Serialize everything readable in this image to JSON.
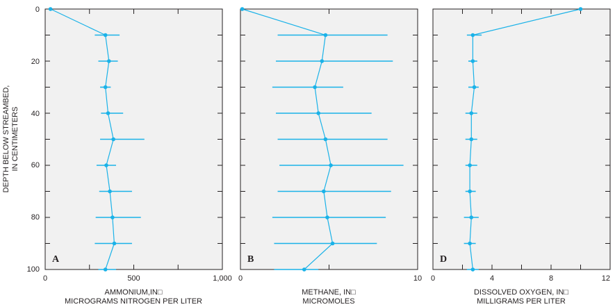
{
  "y_axis": {
    "label_lines": [
      "DEPTH BELOW STREAMBED,",
      "IN CENTIMETERS"
    ],
    "ticks": [
      "0",
      "20",
      "40",
      "60",
      "80",
      "100"
    ]
  },
  "colors": {
    "series": "#1ab2e8",
    "panel_background": "#f1f1f1",
    "axis": "#231f20"
  },
  "chart_data": [
    {
      "type": "line",
      "panel_label": "A",
      "xlabel_lines": [
        "AMMONIUM,IN□",
        "MICROGRAMS NITROGEN PER LITER"
      ],
      "xlim": [
        0,
        1000
      ],
      "ylim": [
        100,
        0
      ],
      "x_ticks": [
        "0",
        "500",
        "1,000"
      ],
      "x_minor_ticks": [
        250,
        750
      ],
      "y_ticks": [
        0,
        20,
        40,
        60,
        80,
        100
      ],
      "y_minor_ticks": [
        10,
        30,
        50,
        70,
        90
      ],
      "grid": false,
      "depth": [
        0,
        10,
        20,
        30,
        40,
        50,
        60,
        70,
        80,
        90,
        100
      ],
      "values": [
        30,
        340,
        360,
        340,
        355,
        385,
        345,
        365,
        380,
        390,
        340
      ],
      "error_low": [
        30,
        280,
        300,
        310,
        315,
        310,
        290,
        305,
        285,
        280,
        300
      ],
      "error_high": [
        30,
        420,
        410,
        370,
        440,
        560,
        400,
        490,
        540,
        490,
        400
      ]
    },
    {
      "type": "line",
      "panel_label": "B",
      "xlabel_lines": [
        "METHANE, IN□",
        "MICROMOLES"
      ],
      "xlim": [
        0,
        10
      ],
      "ylim": [
        100,
        0
      ],
      "x_ticks": [
        "0",
        "10"
      ],
      "x_minor_ticks": [
        5
      ],
      "y_ticks": [
        0,
        20,
        40,
        60,
        80,
        100
      ],
      "y_minor_ticks": [
        10,
        30,
        50,
        70,
        90
      ],
      "grid": false,
      "depth": [
        0,
        10,
        20,
        30,
        40,
        50,
        60,
        70,
        80,
        90,
        100
      ],
      "values": [
        0.1,
        4.8,
        4.6,
        4.2,
        4.4,
        4.8,
        5.1,
        4.7,
        4.9,
        5.2,
        3.6
      ],
      "error_low": [
        0.1,
        2.1,
        2.0,
        1.8,
        2.0,
        2.1,
        2.2,
        2.1,
        1.8,
        1.9,
        1.9
      ],
      "error_high": [
        0.1,
        8.3,
        8.6,
        5.8,
        7.4,
        8.3,
        9.2,
        8.5,
        8.2,
        7.7,
        4.4
      ]
    },
    {
      "type": "line",
      "panel_label": "D",
      "xlabel_lines": [
        "DISSOLVED OXYGEN, IN□",
        "MILLIGRAMS PER LITER"
      ],
      "xlim": [
        0,
        12
      ],
      "ylim": [
        100,
        0
      ],
      "x_ticks": [
        "0",
        "4",
        "8",
        "12"
      ],
      "x_minor_ticks": [
        2,
        6,
        10
      ],
      "y_ticks": [
        0,
        20,
        40,
        60,
        80,
        100
      ],
      "y_minor_ticks": [
        10,
        30,
        50,
        70,
        90
      ],
      "grid": false,
      "depth": [
        0,
        10,
        20,
        30,
        40,
        50,
        60,
        70,
        80,
        90,
        100
      ],
      "values": [
        10.0,
        2.7,
        2.7,
        2.8,
        2.6,
        2.6,
        2.5,
        2.5,
        2.6,
        2.5,
        2.7
      ],
      "error_low": [
        10.0,
        2.3,
        2.4,
        2.4,
        2.2,
        2.2,
        2.2,
        2.2,
        2.1,
        2.1,
        2.3
      ],
      "error_high": [
        10.0,
        3.3,
        3.0,
        3.1,
        3.0,
        3.0,
        3.0,
        2.9,
        3.1,
        2.9,
        3.1
      ]
    }
  ]
}
